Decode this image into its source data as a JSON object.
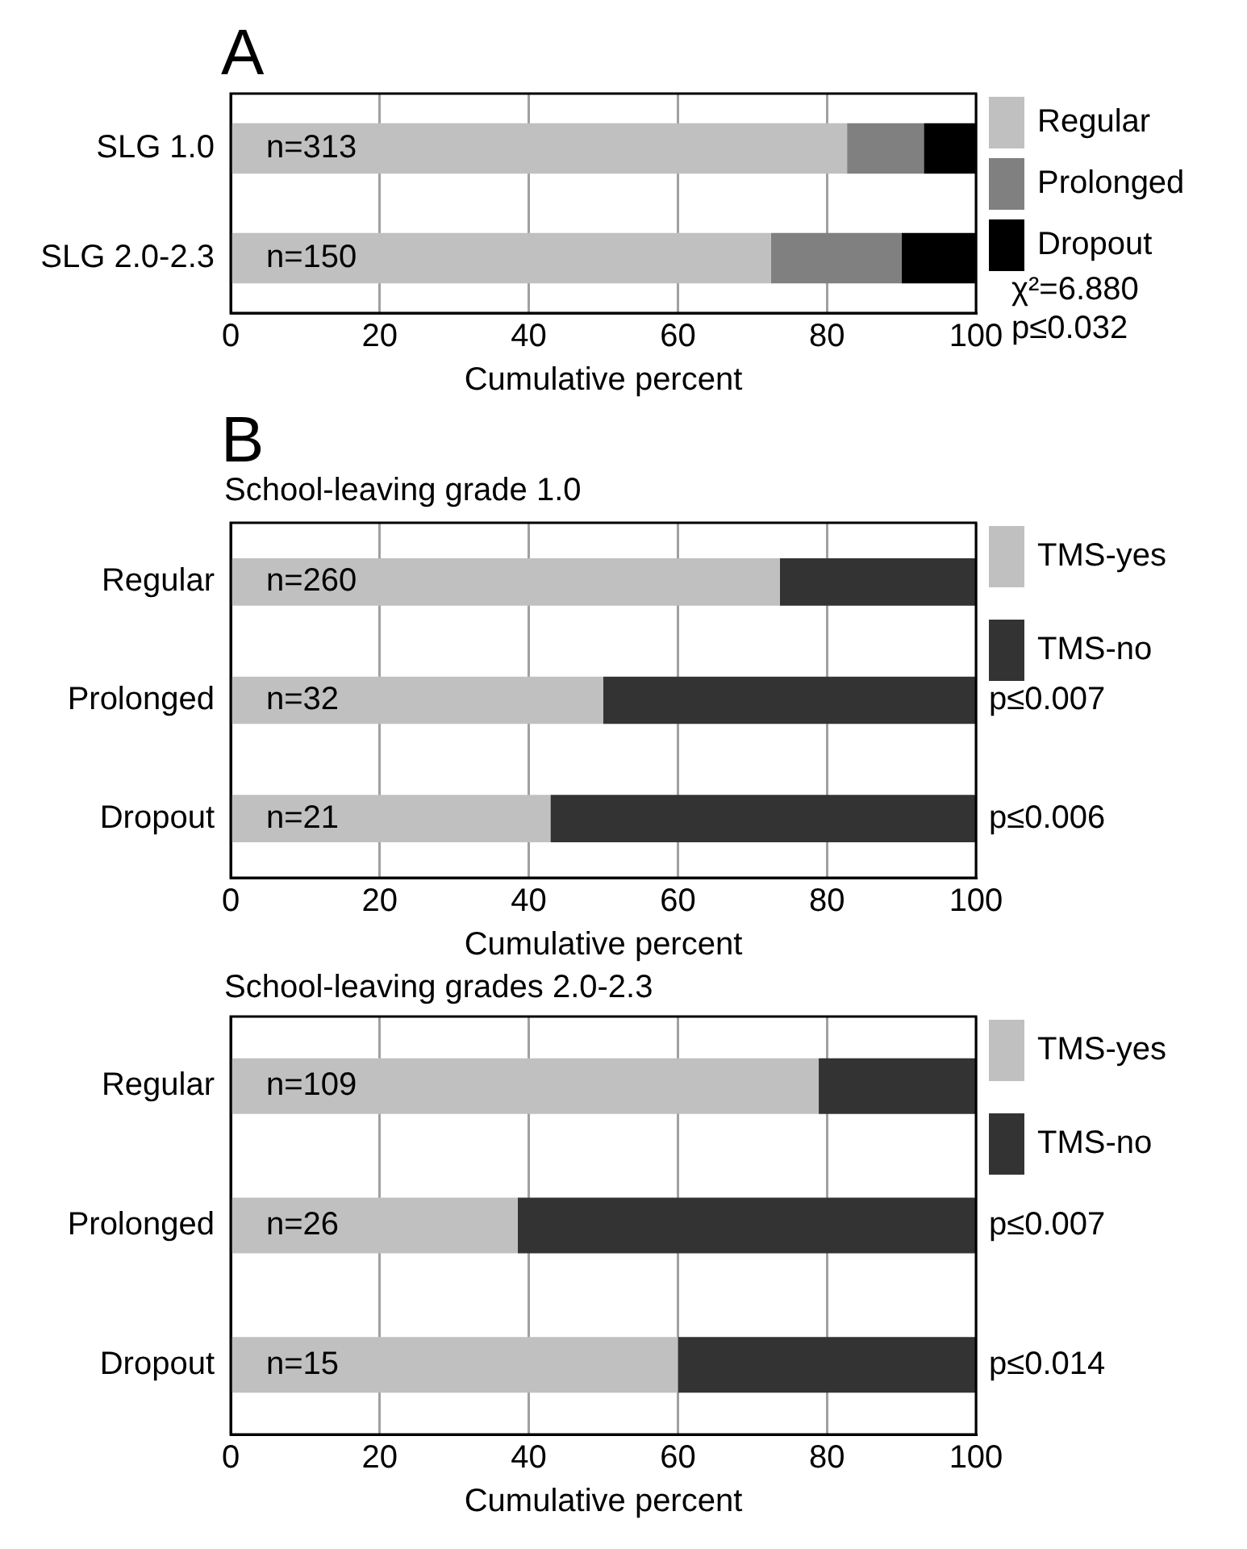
{
  "chart_data": [
    {
      "type": "bar",
      "orientation": "horizontal",
      "stacked": true,
      "title": "A",
      "categories": [
        "SLG 1.0",
        "SLG 2.0-2.3"
      ],
      "series": [
        {
          "name": "Regular",
          "color": "#c0c0c0",
          "values": [
            82.7,
            72.5
          ]
        },
        {
          "name": "Prolonged",
          "color": "#808080",
          "values": [
            10.3,
            17.5
          ]
        },
        {
          "name": "Dropout",
          "color": "#000000",
          "values": [
            7.0,
            10.0
          ]
        }
      ],
      "xlim": [
        0,
        100
      ],
      "xticks": [
        0,
        20,
        40,
        60,
        80,
        100
      ],
      "xlabel": "Cumulative percent",
      "grid": "x",
      "legend": "right",
      "annotations": [
        "n=313",
        "n=150",
        "χ²=6.880",
        "p≤0.032"
      ]
    },
    {
      "type": "bar",
      "orientation": "horizontal",
      "stacked": true,
      "title": "B",
      "subtitle": "School-leaving grade 1.0",
      "categories": [
        "Regular",
        "Prolonged",
        "Dropout"
      ],
      "series": [
        {
          "name": "TMS-yes",
          "color": "#c0c0c0",
          "values": [
            73.7,
            50.0,
            42.9
          ]
        },
        {
          "name": "TMS-no",
          "color": "#333333",
          "values": [
            26.3,
            50.0,
            57.1
          ]
        }
      ],
      "xlim": [
        0,
        100
      ],
      "xticks": [
        0,
        20,
        40,
        60,
        80,
        100
      ],
      "xlabel": "Cumulative percent",
      "grid": "x",
      "legend": "right",
      "annotations": [
        "n=260",
        "n=32",
        "n=21",
        "p≤0.007",
        "p≤0.006"
      ]
    },
    {
      "type": "bar",
      "orientation": "horizontal",
      "stacked": true,
      "subtitle": "School-leaving grades 2.0-2.3",
      "categories": [
        "Regular",
        "Prolonged",
        "Dropout"
      ],
      "series": [
        {
          "name": "TMS-yes",
          "color": "#c0c0c0",
          "values": [
            78.9,
            38.5,
            60.0
          ]
        },
        {
          "name": "TMS-no",
          "color": "#333333",
          "values": [
            21.1,
            61.5,
            40.0
          ]
        }
      ],
      "xlim": [
        0,
        100
      ],
      "xticks": [
        0,
        20,
        40,
        60,
        80,
        100
      ],
      "xlabel": "Cumulative percent",
      "grid": "x",
      "legend": "right",
      "annotations": [
        "n=109",
        "n=26",
        "n=15",
        "p≤0.007",
        "p≤0.014"
      ]
    }
  ]
}
